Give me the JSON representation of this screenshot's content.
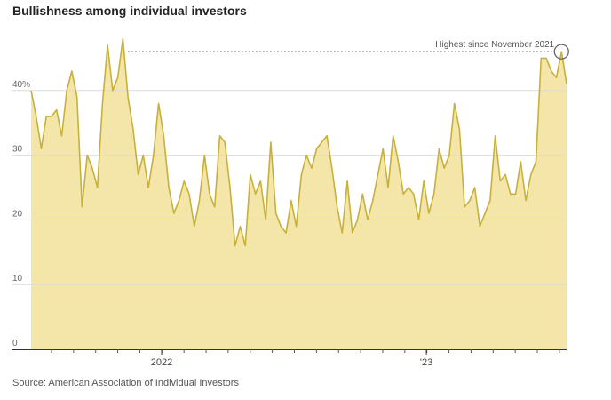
{
  "chart_data": {
    "type": "area",
    "title": "Bullishness among individual investors",
    "source": "Source: American Association of Individual Investors",
    "xlabel": "",
    "ylabel": "",
    "ylim": [
      0,
      48
    ],
    "yticks": [
      {
        "v": 0,
        "label": "0"
      },
      {
        "v": 10,
        "label": "10"
      },
      {
        "v": 20,
        "label": "20"
      },
      {
        "v": 30,
        "label": "30"
      },
      {
        "v": 40,
        "label": "40%"
      }
    ],
    "x_unit": "weekly observations",
    "xticks_labeled": [
      {
        "week": 25.6,
        "label": "2022"
      },
      {
        "week": 77.5,
        "label": "'23"
      }
    ],
    "month_tick_start_week": 4,
    "weeks_per_month": 4.33,
    "values": [
      40,
      36,
      31,
      36,
      36,
      37,
      33,
      40,
      43,
      39,
      22,
      30,
      28,
      25,
      38,
      47,
      40,
      42,
      48,
      39,
      34,
      27,
      30,
      25,
      30,
      38,
      33,
      25,
      21,
      23,
      26,
      24,
      19,
      23,
      30,
      24,
      22,
      33,
      32,
      25,
      16,
      19,
      16,
      27,
      24,
      26,
      20,
      32,
      21,
      19,
      18,
      23,
      19,
      27,
      30,
      28,
      31,
      32,
      33,
      28,
      22,
      18,
      26,
      18,
      20,
      24,
      20,
      23,
      27,
      31,
      25,
      33,
      29,
      24,
      25,
      24,
      20,
      26,
      21,
      24,
      31,
      28,
      30,
      38,
      34,
      22,
      23,
      25,
      19,
      21,
      23,
      33,
      26,
      27,
      24,
      24,
      29,
      23,
      27,
      29,
      45,
      45,
      43,
      42,
      46,
      41
    ],
    "annotation": {
      "text": "Highest since November 2021",
      "value": 46,
      "from_week": 19,
      "to_week": 104
    },
    "grid": true,
    "colors": {
      "fill": "#f3e6a8",
      "line": "#c8b03a",
      "grid": "#dcdcdc"
    }
  }
}
